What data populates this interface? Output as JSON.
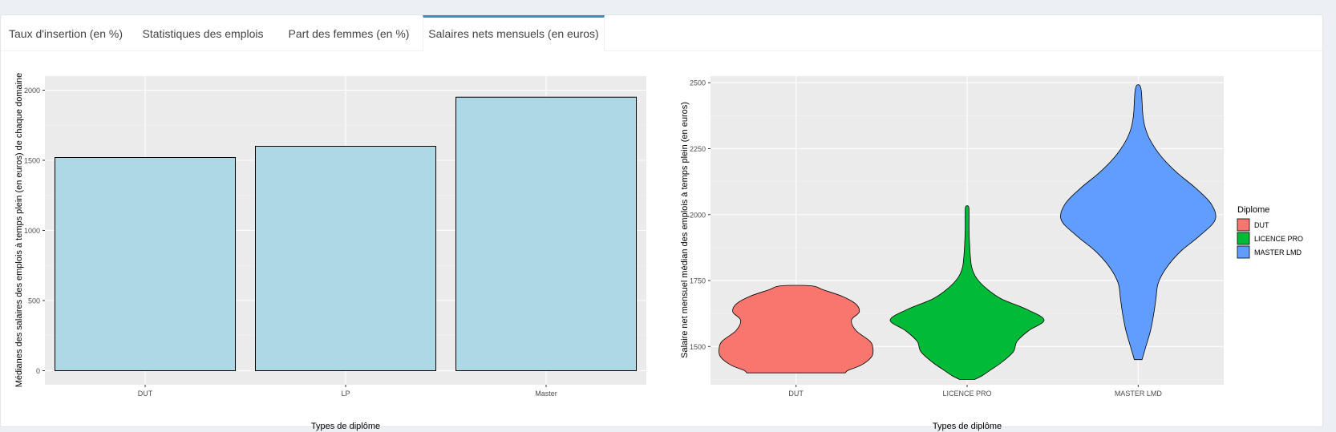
{
  "tabs": [
    {
      "label": "Taux d'insertion (en %)",
      "active": false
    },
    {
      "label": "Statistiques des emplois",
      "active": false
    },
    {
      "label": "Part des femmes (en %)",
      "active": false
    },
    {
      "label": "Salaires nets mensuels (en euros)",
      "active": true
    }
  ],
  "colors": {
    "tab_active": "#3c8dbc",
    "panel_bg": "#ebebeb",
    "bar_fill": "#add8e6",
    "dut": "#f8766d",
    "lp": "#00ba38",
    "master": "#619cff"
  },
  "chart_data": [
    {
      "type": "bar",
      "categories": [
        "DUT",
        "LP",
        "Master"
      ],
      "values": [
        1520,
        1600,
        1950
      ],
      "xlabel": "Types de diplôme",
      "ylabel": "Médianes des salaires des emplois à temps plein (en euros) de chaque domaine",
      "ylim": [
        0,
        2000
      ],
      "yticks": [
        0,
        500,
        1000,
        1500,
        2000
      ],
      "grid": true
    },
    {
      "type": "violin",
      "categories": [
        "DUT",
        "LICENCE PRO",
        "MASTER LMD"
      ],
      "xlabel": "Types de diplôme",
      "ylabel": "Salaire net mensuel médian des emplois à temps plein (en euros)",
      "ylim": [
        1380,
        2500
      ],
      "yticks": [
        1500,
        1750,
        2000,
        2250,
        2500
      ],
      "grid": true,
      "legend": {
        "title": "Diplome",
        "position": "right",
        "entries": [
          "DUT",
          "LICENCE PRO",
          "MASTER LMD"
        ]
      },
      "series": [
        {
          "category": "DUT",
          "profile": [
            [
              1400,
              0.64
            ],
            [
              1410,
              0.68
            ],
            [
              1430,
              0.85
            ],
            [
              1460,
              0.98
            ],
            [
              1490,
              1.0
            ],
            [
              1520,
              0.96
            ],
            [
              1560,
              0.78
            ],
            [
              1600,
              0.72
            ],
            [
              1630,
              0.82
            ],
            [
              1660,
              0.78
            ],
            [
              1690,
              0.6
            ],
            [
              1715,
              0.35
            ],
            [
              1730,
              0.2
            ]
          ]
        },
        {
          "category": "LICENCE PRO",
          "profile": [
            [
              1375,
              0.1
            ],
            [
              1390,
              0.2
            ],
            [
              1410,
              0.3
            ],
            [
              1440,
              0.45
            ],
            [
              1480,
              0.6
            ],
            [
              1520,
              0.65
            ],
            [
              1560,
              0.8
            ],
            [
              1600,
              1.0
            ],
            [
              1640,
              0.78
            ],
            [
              1680,
              0.45
            ],
            [
              1720,
              0.25
            ],
            [
              1760,
              0.12
            ],
            [
              1800,
              0.06
            ],
            [
              1850,
              0.04
            ],
            [
              1900,
              0.03
            ],
            [
              1950,
              0.025
            ],
            [
              2000,
              0.025
            ],
            [
              2030,
              0.02
            ]
          ]
        },
        {
          "category": "MASTER LMD",
          "profile": [
            [
              1450,
              0.05
            ],
            [
              1500,
              0.1
            ],
            [
              1560,
              0.16
            ],
            [
              1620,
              0.2
            ],
            [
              1680,
              0.23
            ],
            [
              1740,
              0.26
            ],
            [
              1800,
              0.37
            ],
            [
              1860,
              0.55
            ],
            [
              1920,
              0.8
            ],
            [
              1980,
              1.0
            ],
            [
              2040,
              0.95
            ],
            [
              2100,
              0.75
            ],
            [
              2160,
              0.5
            ],
            [
              2220,
              0.3
            ],
            [
              2280,
              0.16
            ],
            [
              2330,
              0.09
            ],
            [
              2380,
              0.06
            ],
            [
              2430,
              0.05
            ],
            [
              2470,
              0.04
            ],
            [
              2490,
              0.02
            ]
          ]
        }
      ]
    }
  ]
}
